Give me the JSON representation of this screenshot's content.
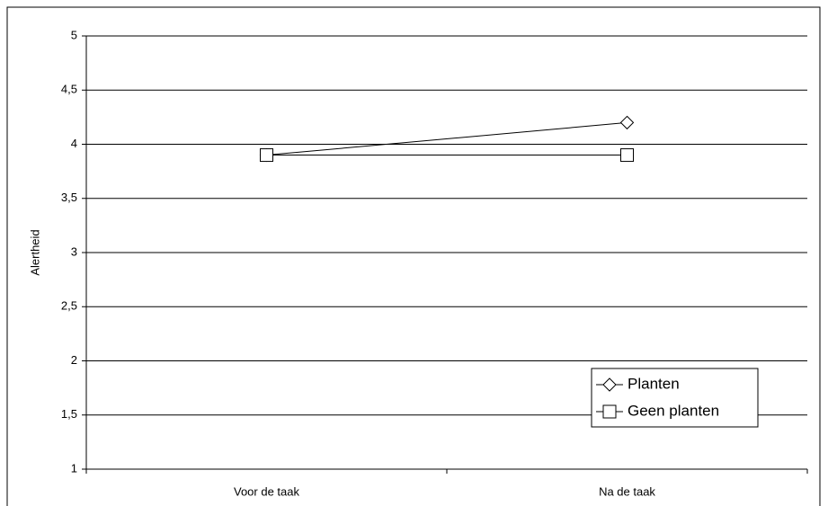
{
  "chart_data": {
    "type": "line",
    "y_label": "Alertheid",
    "categories": [
      "Voor de taak",
      "Na de taak"
    ],
    "series": [
      {
        "name": "Planten",
        "color": "#000000",
        "marker": "diamond",
        "values": [
          3.9,
          4.2
        ]
      },
      {
        "name": "Geen planten",
        "color": "#000000",
        "marker": "square",
        "values": [
          3.9,
          3.9
        ]
      }
    ],
    "ylim": [
      1,
      5
    ],
    "yticks": [
      1,
      {
        "value": 1.5,
        "label": "1,5"
      },
      2,
      {
        "value": 2.5,
        "label": "2,5"
      },
      3,
      {
        "value": 3.5,
        "label": "3,5"
      },
      4,
      {
        "value": 4.5,
        "label": "4,5"
      },
      5
    ],
    "grid": true,
    "legend": "lower right"
  }
}
